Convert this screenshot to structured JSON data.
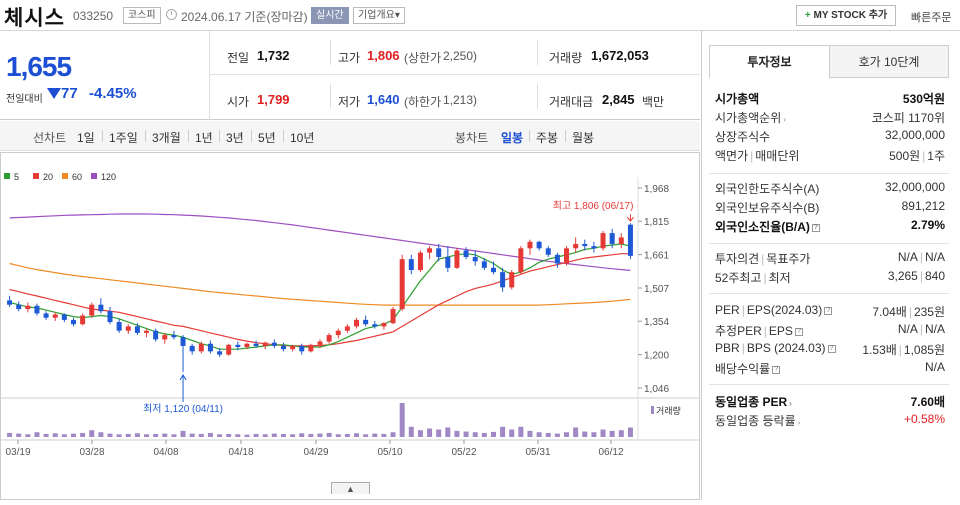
{
  "header": {
    "name": "체시스",
    "code": "033250",
    "market": "코스피",
    "date": "2024.06.17 기준(장마감)",
    "realtime": "실시간",
    "overview": "기업개요",
    "overview_caret": "▾",
    "mystock": "MY STOCK 추가",
    "mystock_plus": "+",
    "quick": "빠른주문"
  },
  "price": {
    "current": "1,655",
    "change_label": "전일대비",
    "change": "77",
    "change_pct": "-4.45%"
  },
  "quote": {
    "prev_label": "전일",
    "prev": "1,732",
    "high_label": "고가",
    "high": "1,806",
    "upper_label": "(상한가",
    "upper": "2,250)",
    "volume_label": "거래량",
    "volume": "1,672,053",
    "open_label": "시가",
    "open": "1,799",
    "low_label": "저가",
    "low": "1,640",
    "lower_label": "(하한가",
    "lower": "1,213)",
    "amount_label": "거래대금",
    "amount": "2,845",
    "amount_unit": "백만"
  },
  "period": {
    "line_label": "선차트",
    "options": [
      "1일",
      "1주일",
      "3개월",
      "1년",
      "3년",
      "5년",
      "10년"
    ],
    "candle_label": "봉차트",
    "candle_options": [
      "일봉",
      "주봉",
      "월봉"
    ],
    "active_candle": "일봉"
  },
  "chart_data": {
    "type": "candlestick",
    "legend": [
      {
        "name": "5",
        "color": "#2e9e2e"
      },
      {
        "name": "20",
        "color": "#e53935"
      },
      {
        "name": "60",
        "color": "#f08a24"
      },
      {
        "name": "120",
        "color": "#9c4fc0"
      }
    ],
    "y_ticks": [
      "1,968",
      "1,815",
      "1,661",
      "1,507",
      "1,354",
      "1,200",
      "1,046"
    ],
    "y_min": 1046,
    "y_max": 1968,
    "x_ticks": [
      "03/19",
      "03/28",
      "04/08",
      "04/18",
      "04/29",
      "05/10",
      "05/22",
      "05/31",
      "06/12"
    ],
    "max_annotation": "최고 1,806 (06/17)",
    "min_annotation": "최저 1,120 (04/11)",
    "volume_label": "거래량",
    "candles": [
      [
        1450,
        1470,
        1420,
        1430
      ],
      [
        1430,
        1445,
        1400,
        1410
      ],
      [
        1410,
        1440,
        1395,
        1425
      ],
      [
        1425,
        1435,
        1380,
        1390
      ],
      [
        1390,
        1400,
        1360,
        1370
      ],
      [
        1370,
        1395,
        1355,
        1385
      ],
      [
        1385,
        1390,
        1350,
        1360
      ],
      [
        1360,
        1370,
        1330,
        1340
      ],
      [
        1340,
        1390,
        1335,
        1380
      ],
      [
        1380,
        1440,
        1370,
        1430
      ],
      [
        1430,
        1460,
        1390,
        1400
      ],
      [
        1400,
        1420,
        1340,
        1350
      ],
      [
        1350,
        1365,
        1300,
        1310
      ],
      [
        1310,
        1340,
        1295,
        1330
      ],
      [
        1330,
        1345,
        1290,
        1300
      ],
      [
        1300,
        1320,
        1280,
        1310
      ],
      [
        1310,
        1320,
        1260,
        1270
      ],
      [
        1270,
        1300,
        1250,
        1290
      ],
      [
        1290,
        1310,
        1270,
        1280
      ],
      [
        1280,
        1290,
        1120,
        1240
      ],
      [
        1240,
        1250,
        1200,
        1215
      ],
      [
        1215,
        1260,
        1205,
        1250
      ],
      [
        1250,
        1265,
        1205,
        1215
      ],
      [
        1215,
        1230,
        1190,
        1200
      ],
      [
        1200,
        1250,
        1195,
        1245
      ],
      [
        1245,
        1260,
        1220,
        1235
      ],
      [
        1235,
        1255,
        1225,
        1250
      ],
      [
        1250,
        1265,
        1230,
        1240
      ],
      [
        1240,
        1260,
        1225,
        1255
      ],
      [
        1255,
        1270,
        1230,
        1240
      ],
      [
        1240,
        1255,
        1215,
        1225
      ],
      [
        1225,
        1245,
        1215,
        1240
      ],
      [
        1240,
        1250,
        1200,
        1215
      ],
      [
        1215,
        1250,
        1210,
        1245
      ],
      [
        1245,
        1270,
        1230,
        1260
      ],
      [
        1260,
        1300,
        1250,
        1290
      ],
      [
        1290,
        1320,
        1275,
        1310
      ],
      [
        1310,
        1340,
        1300,
        1330
      ],
      [
        1330,
        1370,
        1320,
        1360
      ],
      [
        1360,
        1380,
        1330,
        1340
      ],
      [
        1340,
        1355,
        1320,
        1330
      ],
      [
        1330,
        1350,
        1315,
        1345
      ],
      [
        1345,
        1420,
        1340,
        1410
      ],
      [
        1410,
        1660,
        1400,
        1640
      ],
      [
        1640,
        1660,
        1570,
        1590
      ],
      [
        1590,
        1680,
        1580,
        1670
      ],
      [
        1670,
        1700,
        1640,
        1690
      ],
      [
        1690,
        1710,
        1630,
        1650
      ],
      [
        1650,
        1700,
        1580,
        1600
      ],
      [
        1600,
        1690,
        1595,
        1680
      ],
      [
        1680,
        1695,
        1640,
        1650
      ],
      [
        1650,
        1680,
        1610,
        1630
      ],
      [
        1630,
        1645,
        1590,
        1600
      ],
      [
        1600,
        1630,
        1570,
        1580
      ],
      [
        1580,
        1600,
        1490,
        1510
      ],
      [
        1510,
        1590,
        1500,
        1580
      ],
      [
        1580,
        1700,
        1570,
        1690
      ],
      [
        1690,
        1730,
        1660,
        1720
      ],
      [
        1720,
        1725,
        1680,
        1690
      ],
      [
        1690,
        1700,
        1650,
        1660
      ],
      [
        1660,
        1670,
        1600,
        1620
      ],
      [
        1620,
        1700,
        1610,
        1690
      ],
      [
        1690,
        1740,
        1670,
        1710
      ],
      [
        1710,
        1730,
        1680,
        1700
      ],
      [
        1700,
        1720,
        1670,
        1690
      ],
      [
        1690,
        1770,
        1680,
        1760
      ],
      [
        1760,
        1780,
        1690,
        1710
      ],
      [
        1710,
        1760,
        1690,
        1740
      ],
      [
        1799,
        1806,
        1640,
        1655
      ]
    ],
    "volumes": [
      12,
      10,
      8,
      14,
      9,
      11,
      8,
      10,
      12,
      20,
      14,
      10,
      8,
      9,
      11,
      8,
      9,
      10,
      8,
      18,
      10,
      9,
      12,
      8,
      9,
      8,
      7,
      9,
      8,
      10,
      9,
      8,
      11,
      9,
      10,
      12,
      8,
      9,
      11,
      8,
      10,
      9,
      14,
      100,
      30,
      20,
      25,
      22,
      28,
      18,
      16,
      14,
      12,
      15,
      30,
      22,
      30,
      18,
      14,
      12,
      10,
      14,
      28,
      16,
      14,
      22,
      18,
      20,
      28
    ],
    "ma5": [
      1440,
      1430,
      1420,
      1415,
      1405,
      1395,
      1385,
      1375,
      1370,
      1375,
      1380,
      1375,
      1365,
      1350,
      1335,
      1320,
      1305,
      1295,
      1290,
      1280,
      1265,
      1250,
      1240,
      1225,
      1225,
      1225,
      1230,
      1235,
      1240,
      1245,
      1245,
      1240,
      1235,
      1235,
      1235,
      1245,
      1260,
      1280,
      1300,
      1320,
      1330,
      1340,
      1360,
      1420,
      1480,
      1540,
      1590,
      1640,
      1650,
      1660,
      1665,
      1660,
      1640,
      1620,
      1590,
      1570,
      1580,
      1600,
      1625,
      1640,
      1650,
      1660,
      1670,
      1685,
      1690,
      1700,
      1705,
      1710,
      1700
    ],
    "ma20": [
      1500,
      1490,
      1480,
      1470,
      1460,
      1450,
      1440,
      1430,
      1420,
      1410,
      1405,
      1400,
      1395,
      1385,
      1375,
      1365,
      1355,
      1345,
      1335,
      1330,
      1320,
      1310,
      1300,
      1290,
      1280,
      1270,
      1262,
      1255,
      1250,
      1245,
      1242,
      1240,
      1240,
      1240,
      1242,
      1245,
      1250,
      1258,
      1265,
      1275,
      1285,
      1295,
      1305,
      1330,
      1355,
      1380,
      1405,
      1430,
      1450,
      1470,
      1490,
      1505,
      1515,
      1525,
      1540,
      1555,
      1570,
      1585,
      1595,
      1605,
      1615,
      1625,
      1635,
      1645,
      1650,
      1655,
      1660,
      1665,
      1665
    ],
    "ma60": [
      1620,
      1610,
      1600,
      1592,
      1585,
      1578,
      1571,
      1565,
      1560,
      1555,
      1550,
      1545,
      1540,
      1535,
      1530,
      1525,
      1520,
      1515,
      1510,
      1505,
      1500,
      1495,
      1490,
      1486,
      1482,
      1478,
      1474,
      1470,
      1466,
      1462,
      1458,
      1455,
      1452,
      1449,
      1446,
      1443,
      1440,
      1437,
      1434,
      1432,
      1430,
      1428,
      1428,
      1428,
      1428,
      1428,
      1428,
      1428,
      1428,
      1428,
      1428,
      1428,
      1428,
      1428,
      1428,
      1428,
      1428,
      1428,
      1428,
      1430,
      1432,
      1434,
      1436,
      1438,
      1440,
      1443,
      1446,
      1450,
      1455
    ],
    "ma120": [
      1830,
      1832,
      1834,
      1836,
      1838,
      1840,
      1842,
      1843,
      1844,
      1845,
      1846,
      1847,
      1848,
      1848,
      1848,
      1848,
      1847,
      1846,
      1845,
      1843,
      1841,
      1839,
      1836,
      1833,
      1830,
      1826,
      1822,
      1818,
      1813,
      1808,
      1803,
      1798,
      1792,
      1786,
      1780,
      1774,
      1768,
      1762,
      1756,
      1750,
      1744,
      1738,
      1732,
      1726,
      1720,
      1714,
      1708,
      1702,
      1696,
      1690,
      1684,
      1678,
      1672,
      1666,
      1660,
      1654,
      1648,
      1642,
      1636,
      1630,
      1625,
      1620,
      1615,
      1610,
      1605,
      1600,
      1596,
      1592,
      1588
    ]
  },
  "tabs": [
    "투자정보",
    "호가 10단계"
  ],
  "invest": {
    "g1": [
      {
        "l": "시가총액",
        "v": "530억원",
        "bold": true
      },
      {
        "l": "시가총액순위",
        "v": "코스피 1170위",
        "caret": true
      },
      {
        "l": "상장주식수",
        "v": "32,000,000"
      },
      {
        "l": "액면가",
        "l2": "매매단위",
        "v": "500원",
        "v2": "1주"
      }
    ],
    "g2": [
      {
        "l": "외국인한도주식수(A)",
        "v": "32,000,000"
      },
      {
        "l": "외국인보유주식수(B)",
        "v": "891,212"
      },
      {
        "l": "외국인소진율(B/A)",
        "v": "2.79%",
        "bold": true,
        "q": true
      }
    ],
    "g3": [
      {
        "l": "투자의견",
        "l2": "목표주가",
        "v": "N/A",
        "v2": "N/A"
      },
      {
        "l": "52주최고",
        "l2": "최저",
        "v": "3,265",
        "v2": "840"
      }
    ],
    "g4": [
      {
        "l": "PER",
        "l2": "EPS(2024.03)",
        "v": "7.04배",
        "v2": "235원",
        "q": true
      },
      {
        "l": "추정PER",
        "l2": "EPS",
        "v": "N/A",
        "v2": "N/A",
        "q": true
      },
      {
        "l": "PBR",
        "l2": "BPS (2024.03)",
        "v": "1.53배",
        "v2": "1,085원",
        "q": true
      },
      {
        "l": "배당수익률",
        "v": "N/A",
        "q": true
      }
    ],
    "g5": [
      {
        "l": "동일업종 PER",
        "v": "7.60배",
        "bold": true,
        "caret": true
      },
      {
        "l": "동일업종 등락률",
        "v": "+0.58%",
        "caret": true,
        "red": true
      }
    ]
  },
  "pager": "▲"
}
